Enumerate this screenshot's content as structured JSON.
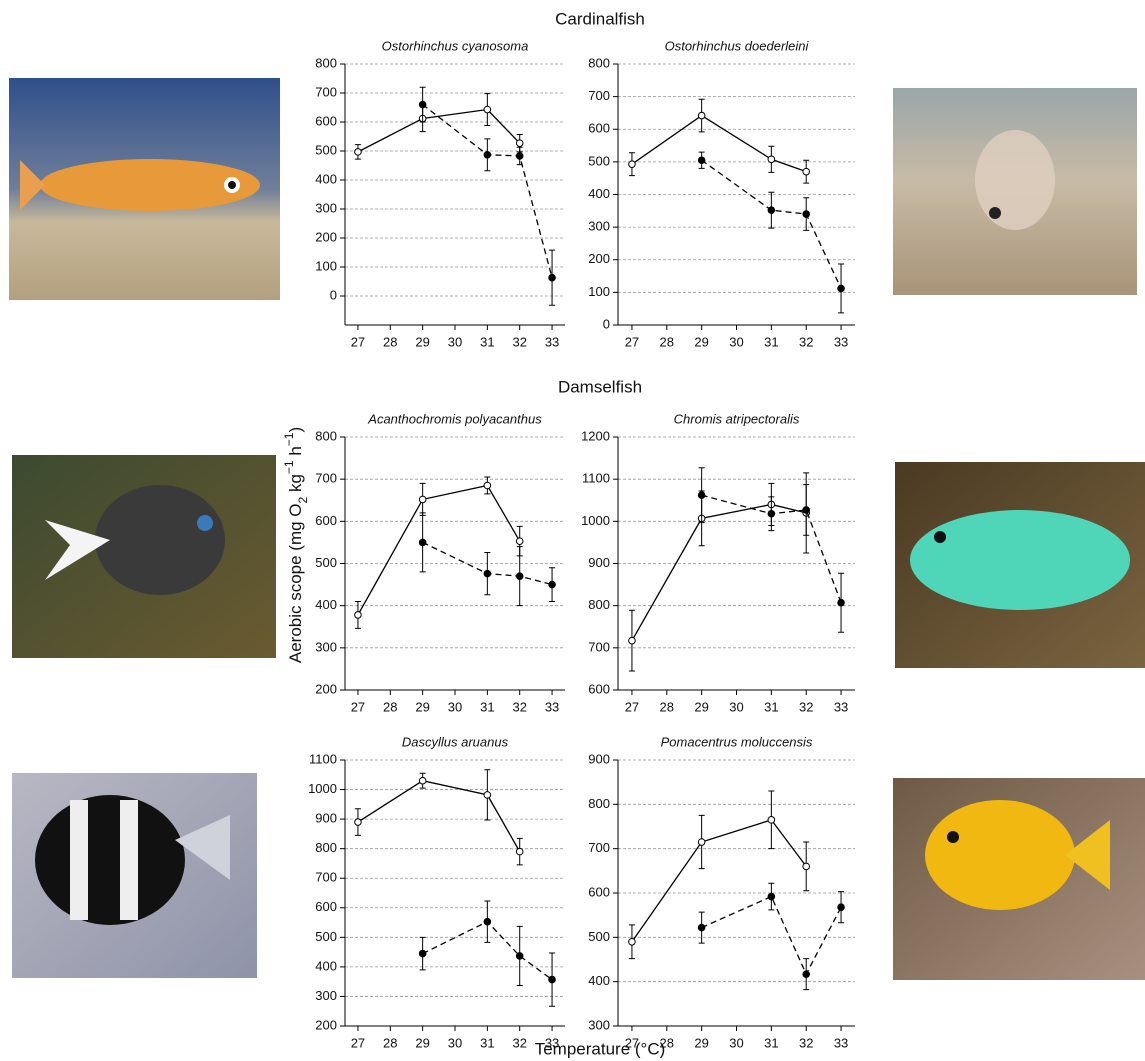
{
  "groups": [
    {
      "title": "Cardinalfish"
    },
    {
      "title": "Damselfish"
    }
  ],
  "y_label": {
    "parts": [
      "Aerobic scope (mg O",
      "2",
      " kg",
      "−1",
      " h",
      "−1",
      ")"
    ]
  },
  "x_label": "Temperature (°C)",
  "chart_data": [
    {
      "type": "line",
      "title": "Ostorhinchus cyanosoma",
      "xlim": [
        26.6,
        33.4
      ],
      "xticks": [
        27,
        28,
        29,
        30,
        31,
        32,
        33
      ],
      "ylim": [
        -100,
        800
      ],
      "yticks": [
        0,
        100,
        200,
        300,
        400,
        500,
        600,
        700,
        800
      ],
      "grid": true,
      "series": [
        {
          "color": "#000000",
          "line_style": "solid",
          "marker": "open",
          "x": [
            27,
            29,
            31,
            32
          ],
          "values": [
            497,
            612,
            643,
            527
          ],
          "errors": [
            25,
            45,
            55,
            30
          ]
        },
        {
          "color": "#000000",
          "line_style": "dashed",
          "marker": "filled",
          "x": [
            29,
            31,
            32,
            33
          ],
          "values": [
            660,
            487,
            483,
            63
          ],
          "errors": [
            60,
            55,
            30,
            95
          ]
        }
      ]
    },
    {
      "type": "line",
      "title": "Ostorhinchus doederleini",
      "xlim": [
        26.6,
        33.4
      ],
      "xticks": [
        27,
        28,
        29,
        30,
        31,
        32,
        33
      ],
      "ylim": [
        0,
        800
      ],
      "yticks": [
        0,
        100,
        200,
        300,
        400,
        500,
        600,
        700,
        800
      ],
      "grid": true,
      "series": [
        {
          "color": "#000000",
          "line_style": "solid",
          "marker": "open",
          "x": [
            27,
            29,
            31,
            32
          ],
          "values": [
            493,
            642,
            508,
            470
          ],
          "errors": [
            35,
            50,
            40,
            35
          ]
        },
        {
          "color": "#000000",
          "line_style": "dashed",
          "marker": "filled",
          "x": [
            29,
            31,
            32,
            33
          ],
          "values": [
            505,
            352,
            340,
            112
          ],
          "errors": [
            25,
            55,
            50,
            75
          ]
        }
      ]
    },
    {
      "type": "line",
      "title": "Acanthochromis polyacanthus",
      "xlim": [
        26.6,
        33.4
      ],
      "xticks": [
        27,
        28,
        29,
        30,
        31,
        32,
        33
      ],
      "ylim": [
        200,
        800
      ],
      "yticks": [
        200,
        300,
        400,
        500,
        600,
        700,
        800
      ],
      "grid": true,
      "series": [
        {
          "color": "#000000",
          "line_style": "solid",
          "marker": "open",
          "x": [
            27,
            29,
            31,
            32
          ],
          "values": [
            378,
            652,
            685,
            553
          ],
          "errors": [
            32,
            38,
            20,
            35
          ]
        },
        {
          "color": "#000000",
          "line_style": "dashed",
          "marker": "filled",
          "x": [
            29,
            31,
            32,
            33
          ],
          "values": [
            550,
            476,
            470,
            450
          ],
          "errors": [
            70,
            50,
            70,
            40
          ]
        }
      ]
    },
    {
      "type": "line",
      "title": "Chromis atripectoralis",
      "xlim": [
        26.6,
        33.4
      ],
      "xticks": [
        27,
        28,
        29,
        30,
        31,
        32,
        33
      ],
      "ylim": [
        600,
        1200
      ],
      "yticks": [
        600,
        700,
        800,
        900,
        1000,
        1100,
        1200
      ],
      "grid": true,
      "series": [
        {
          "color": "#000000",
          "line_style": "solid",
          "marker": "open",
          "x": [
            27,
            29,
            31,
            32
          ],
          "values": [
            717,
            1007,
            1040,
            1020
          ],
          "errors": [
            72,
            65,
            50,
            95
          ]
        },
        {
          "color": "#000000",
          "line_style": "dashed",
          "marker": "filled",
          "x": [
            29,
            31,
            32,
            33
          ],
          "values": [
            1062,
            1018,
            1027,
            807
          ],
          "errors": [
            65,
            40,
            60,
            70
          ]
        }
      ]
    },
    {
      "type": "line",
      "title": "Dascyllus aruanus",
      "xlim": [
        26.6,
        33.4
      ],
      "xticks": [
        27,
        28,
        29,
        30,
        31,
        32,
        33
      ],
      "ylim": [
        200,
        1100
      ],
      "yticks": [
        200,
        300,
        400,
        500,
        600,
        700,
        800,
        900,
        1000,
        1100
      ],
      "grid": true,
      "series": [
        {
          "color": "#000000",
          "line_style": "solid",
          "marker": "open",
          "x": [
            27,
            29,
            31,
            32
          ],
          "values": [
            890,
            1030,
            982,
            790
          ],
          "errors": [
            45,
            25,
            85,
            45
          ]
        },
        {
          "color": "#000000",
          "line_style": "dashed",
          "marker": "filled",
          "x": [
            29,
            31,
            32,
            33
          ],
          "values": [
            445,
            553,
            437,
            357
          ],
          "errors": [
            55,
            70,
            100,
            90
          ]
        }
      ]
    },
    {
      "type": "line",
      "title": "Pomacentrus moluccensis",
      "xlim": [
        26.6,
        33.4
      ],
      "xticks": [
        27,
        28,
        29,
        30,
        31,
        32,
        33
      ],
      "ylim": [
        300,
        900
      ],
      "yticks": [
        300,
        400,
        500,
        600,
        700,
        800,
        900
      ],
      "grid": true,
      "series": [
        {
          "color": "#000000",
          "line_style": "solid",
          "marker": "open",
          "x": [
            27,
            29,
            31,
            32
          ],
          "values": [
            490,
            715,
            765,
            660
          ],
          "errors": [
            38,
            60,
            65,
            55
          ]
        },
        {
          "color": "#000000",
          "line_style": "dashed",
          "marker": "filled",
          "x": [
            29,
            31,
            32,
            33
          ],
          "values": [
            522,
            592,
            417,
            568
          ],
          "errors": [
            35,
            30,
            35,
            35
          ]
        }
      ]
    }
  ]
}
